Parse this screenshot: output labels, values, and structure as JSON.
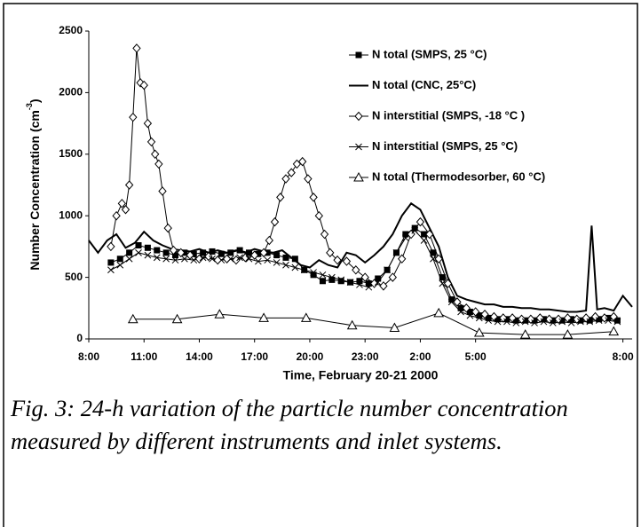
{
  "chart_data": {
    "type": "line",
    "ylabel": [
      "Number Concentration (cm",
      "-3",
      ")"
    ],
    "xlabel": "Time, February 20-21 2000",
    "caption": "Fig. 3: 24-h variation of the particle number concentration measured by different instruments and inlet systems.",
    "xlim": [
      0,
      29.5
    ],
    "ylim": [
      0,
      2500
    ],
    "xticks": [
      {
        "value": 0,
        "label": "8:00"
      },
      {
        "value": 3,
        "label": "11:00"
      },
      {
        "value": 6,
        "label": "14:00"
      },
      {
        "value": 9,
        "label": "17:00"
      },
      {
        "value": 12,
        "label": "20:00"
      },
      {
        "value": 15,
        "label": "23:00"
      },
      {
        "value": 18,
        "label": "2:00"
      },
      {
        "value": 21,
        "label": "5:00"
      },
      {
        "value": 29,
        "label": "8:00"
      }
    ],
    "yticks": [
      0,
      500,
      1000,
      1500,
      2000,
      2500
    ],
    "legend": "upper right",
    "series": [
      {
        "name": "N total (SMPS, 25 °C)",
        "color": "#000",
        "marker": "square",
        "linewidth": 1,
        "x": [
          1.2,
          1.7,
          2.2,
          2.7,
          3.2,
          3.7,
          4.2,
          4.7,
          5.2,
          5.7,
          6.2,
          6.7,
          7.2,
          7.7,
          8.2,
          8.7,
          9.2,
          9.7,
          10.2,
          10.7,
          11.2,
          11.7,
          12.2,
          12.7,
          13.2,
          13.7,
          14.2,
          14.7,
          15.2,
          15.7,
          16.2,
          16.7,
          17.2,
          17.7,
          18.2,
          18.7,
          19.2,
          19.7,
          20.2,
          20.7,
          21.2,
          21.7,
          22.2,
          22.7,
          23.2,
          23.7,
          24.2,
          24.7,
          25.2,
          25.7,
          26.2,
          26.7,
          27.2,
          27.7,
          28.2,
          28.7
        ],
        "values": [
          620,
          650,
          700,
          760,
          740,
          720,
          700,
          680,
          700,
          690,
          700,
          710,
          690,
          700,
          720,
          700,
          690,
          700,
          680,
          660,
          650,
          560,
          520,
          470,
          480,
          470,
          460,
          470,
          450,
          490,
          560,
          700,
          850,
          900,
          850,
          700,
          500,
          320,
          250,
          220,
          190,
          170,
          160,
          160,
          150,
          150,
          150,
          160,
          150,
          150,
          160,
          150,
          150,
          160,
          170,
          150
        ]
      },
      {
        "name": "N total (CNC, 25°C)",
        "color": "#000",
        "marker": "none",
        "linewidth": 2,
        "x": [
          0,
          0.5,
          1,
          1.5,
          2,
          2.5,
          3,
          3.5,
          4,
          4.5,
          5,
          5.5,
          6,
          6.5,
          7,
          7.5,
          8,
          8.5,
          9,
          9.5,
          10,
          10.5,
          11,
          11.5,
          12,
          12.5,
          13,
          13.5,
          14,
          14.5,
          15,
          15.5,
          16,
          16.5,
          17,
          17.5,
          18,
          18.5,
          19,
          19.5,
          20,
          20.5,
          21,
          21.5,
          22,
          22.5,
          23,
          23.5,
          24,
          24.5,
          25,
          25.5,
          26,
          26.5,
          27,
          27.3,
          27.6,
          28,
          28.5,
          29,
          29.5
        ],
        "values": [
          800,
          700,
          800,
          850,
          740,
          780,
          870,
          800,
          760,
          730,
          720,
          710,
          730,
          700,
          720,
          700,
          720,
          700,
          730,
          710,
          700,
          720,
          660,
          600,
          580,
          640,
          600,
          580,
          700,
          680,
          620,
          680,
          750,
          850,
          1000,
          1100,
          1050,
          900,
          750,
          500,
          350,
          320,
          300,
          280,
          280,
          260,
          260,
          250,
          250,
          240,
          240,
          230,
          220,
          220,
          230,
          920,
          240,
          250,
          230,
          350,
          260
        ]
      },
      {
        "name": "N interstitial (SMPS, -18 °C )",
        "color": "#000",
        "marker": "diamond",
        "linewidth": 1,
        "x": [
          1.2,
          1.5,
          1.8,
          2.0,
          2.2,
          2.4,
          2.6,
          2.8,
          3.0,
          3.2,
          3.4,
          3.6,
          3.8,
          4.0,
          4.3,
          4.6,
          5.0,
          5.5,
          6,
          6.5,
          7,
          7.5,
          8,
          8.5,
          9,
          9.5,
          9.8,
          10.1,
          10.4,
          10.7,
          11,
          11.3,
          11.6,
          11.9,
          12.2,
          12.5,
          12.8,
          13.1,
          13.5,
          14,
          14.5,
          15,
          15.5,
          16,
          16.5,
          17,
          17.5,
          18,
          18.5,
          19,
          19.5,
          20,
          20.5,
          21,
          21.5,
          22,
          22.5,
          23,
          23.5,
          24,
          24.5,
          25,
          25.5,
          26,
          26.5,
          27,
          27.5,
          28,
          28.5
        ],
        "values": [
          750,
          1000,
          1100,
          1050,
          1250,
          1800,
          2360,
          2080,
          2060,
          1750,
          1600,
          1500,
          1420,
          1200,
          900,
          720,
          700,
          680,
          650,
          670,
          640,
          650,
          640,
          660,
          680,
          700,
          800,
          950,
          1150,
          1300,
          1350,
          1420,
          1440,
          1300,
          1150,
          1000,
          850,
          700,
          640,
          630,
          560,
          500,
          450,
          430,
          500,
          650,
          850,
          950,
          850,
          650,
          450,
          300,
          250,
          220,
          200,
          180,
          170,
          170,
          160,
          160,
          170,
          160,
          160,
          170,
          160,
          170,
          180,
          170,
          180
        ]
      },
      {
        "name": "N interstitial (SMPS, 25 °C)",
        "color": "#000",
        "marker": "cross",
        "linewidth": 1,
        "x": [
          1.2,
          1.7,
          2.2,
          2.7,
          3.2,
          3.7,
          4.2,
          4.7,
          5.2,
          5.7,
          6.2,
          6.7,
          7.2,
          7.7,
          8.2,
          8.7,
          9.2,
          9.7,
          10.2,
          10.7,
          11.2,
          11.7,
          12.2,
          12.7,
          13.2,
          13.7,
          14.2,
          14.7,
          15.2,
          15.7,
          16.2,
          16.7,
          17.2,
          17.7,
          18.2,
          18.7,
          19.2,
          19.7,
          20.2,
          20.7,
          21.2,
          21.7,
          22.2,
          22.7,
          23.2,
          23.7,
          24.2,
          24.7,
          25.2,
          25.7,
          26.2,
          26.7,
          27.2,
          27.7,
          28.2,
          28.7
        ],
        "values": [
          560,
          600,
          650,
          700,
          680,
          660,
          650,
          640,
          650,
          640,
          660,
          650,
          640,
          650,
          660,
          650,
          630,
          640,
          620,
          600,
          580,
          560,
          540,
          520,
          500,
          480,
          460,
          440,
          420,
          460,
          560,
          700,
          820,
          880,
          800,
          650,
          450,
          300,
          220,
          190,
          170,
          150,
          140,
          140,
          130,
          140,
          130,
          140,
          130,
          140,
          130,
          140,
          140,
          150,
          150,
          140
        ]
      },
      {
        "name": "N total (Thermodesorber, 60 °C)",
        "color": "#000",
        "marker": "triangle",
        "linewidth": 1,
        "x": [
          2.4,
          4.8,
          7.1,
          9.5,
          11.8,
          14.3,
          16.6,
          19,
          21.2,
          23.7,
          26,
          28.5
        ],
        "values": [
          160,
          160,
          200,
          170,
          170,
          110,
          90,
          210,
          50,
          35,
          35,
          60
        ]
      }
    ]
  }
}
